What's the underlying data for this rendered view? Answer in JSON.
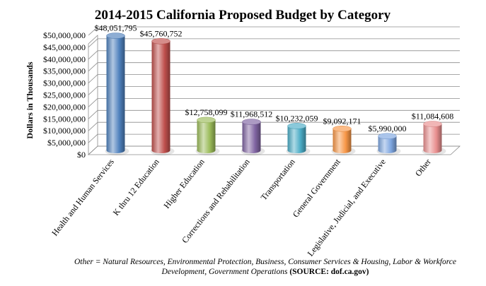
{
  "chart_data": {
    "type": "bar",
    "title": "2014-2015 California Proposed Budget by Category",
    "ylabel": "Dollars in Thousands",
    "xlabel": "",
    "ylim": [
      0,
      50000000
    ],
    "ytick_step": 5000000,
    "yticks": [
      "$0",
      "$5,000,000",
      "$10,000,000",
      "$15,000,000",
      "$20,000,000",
      "$25,000,000",
      "$30,000,000",
      "$35,000,000",
      "$40,000,000",
      "$45,000,000",
      "$50,000,000"
    ],
    "categories": [
      "Health and Human Services",
      "K thru 12 Education",
      "Higher Education",
      "Corrections and Rehabilitation",
      "Transportation",
      "General Government",
      "Legislative, Judicial, and Executive",
      "Other"
    ],
    "values": [
      48051795,
      45760752,
      12758099,
      11968512,
      10232059,
      9092171,
      5990000,
      11084608
    ],
    "data_labels": [
      "$48,051,795",
      "$45,760,752",
      "$12,758,099",
      "$11,968,512",
      "$10,232,059",
      "$9,092,171",
      "$5,990,000",
      "$11,084,608"
    ],
    "colors": [
      "#4f81bd",
      "#c0504d",
      "#9bbb59",
      "#8064a2",
      "#4bacc6",
      "#f79646",
      "#7ea6e0",
      "#e98f8f"
    ],
    "grid": true,
    "legend": "none"
  },
  "footnote": {
    "text": "Other = Natural Resources, Environmental Protection, Business, Consumer Services & Housing, Labor & Workforce Development, Government  Operations",
    "source": "(SOURCE: dof.ca.gov)"
  }
}
